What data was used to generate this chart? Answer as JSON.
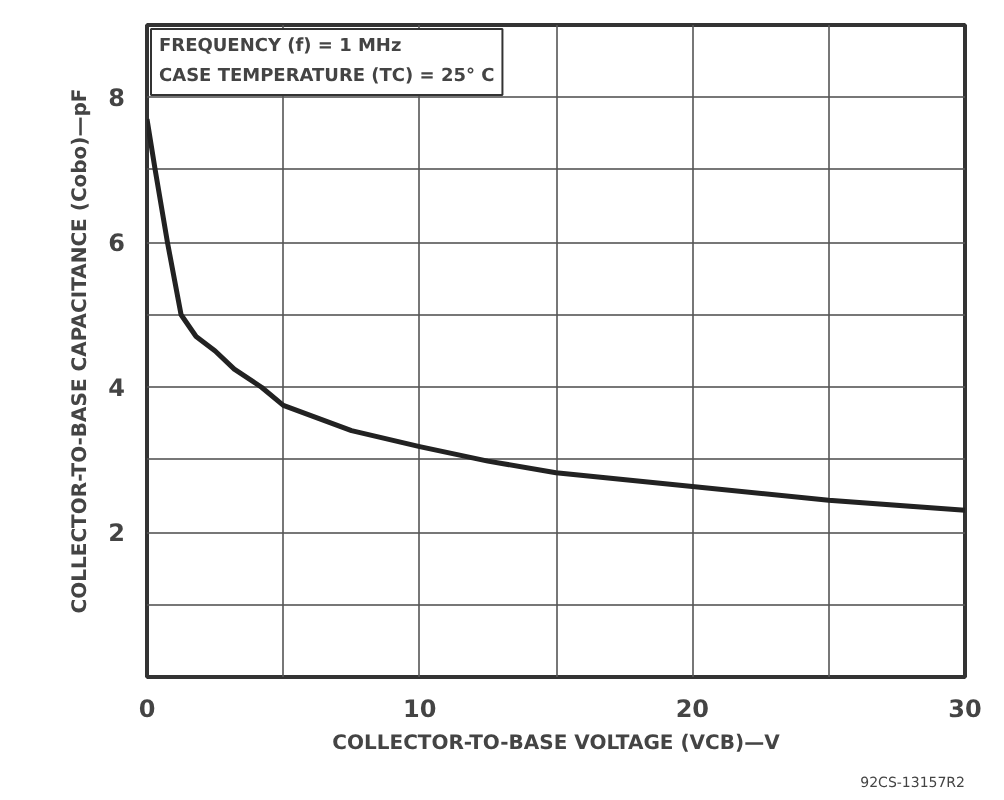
{
  "chart_data": {
    "type": "line",
    "xlabel": "COLLECTOR-TO-BASE VOLTAGE (VCB)—V",
    "ylabel": "COLLECTOR-TO-BASE CAPACITANCE (Cobo)—pF",
    "annotations": [
      "FREQUENCY (f) = 1 MHz",
      "CASE TEMPERATURE (TC) = 25° C",
      "92CS-13157R2"
    ],
    "series": [
      {
        "color": "#222222",
        "x": [
          0,
          0.3,
          0.75,
          1.25,
          1.8,
          2.5,
          3.2,
          4.2,
          5,
          7.5,
          10,
          12.5,
          15,
          20,
          25,
          30
        ],
        "values": [
          7.7,
          7.0,
          6.0,
          5.0,
          4.7,
          4.5,
          4.25,
          4.0,
          3.75,
          3.4,
          3.18,
          2.98,
          2.82,
          2.63,
          2.44,
          2.3
        ]
      }
    ],
    "xlim": [
      0,
      30
    ],
    "xticks": [
      0,
      {
        "value": 5,
        "label": null
      },
      10,
      {
        "value": 15,
        "label": null
      },
      20,
      {
        "value": 25,
        "label": null
      },
      30
    ],
    "ylim": [
      0,
      9
    ],
    "yticks": [
      {
        "value": 0,
        "label": null
      },
      {
        "value": 1,
        "label": null
      },
      2,
      {
        "value": 3,
        "label": null
      },
      4,
      {
        "value": 5,
        "label": null
      },
      6,
      {
        "value": 7,
        "label": null
      },
      8,
      {
        "value": 9,
        "label": null
      }
    ],
    "grid": true,
    "marker": "none",
    "line_style": "solid"
  }
}
